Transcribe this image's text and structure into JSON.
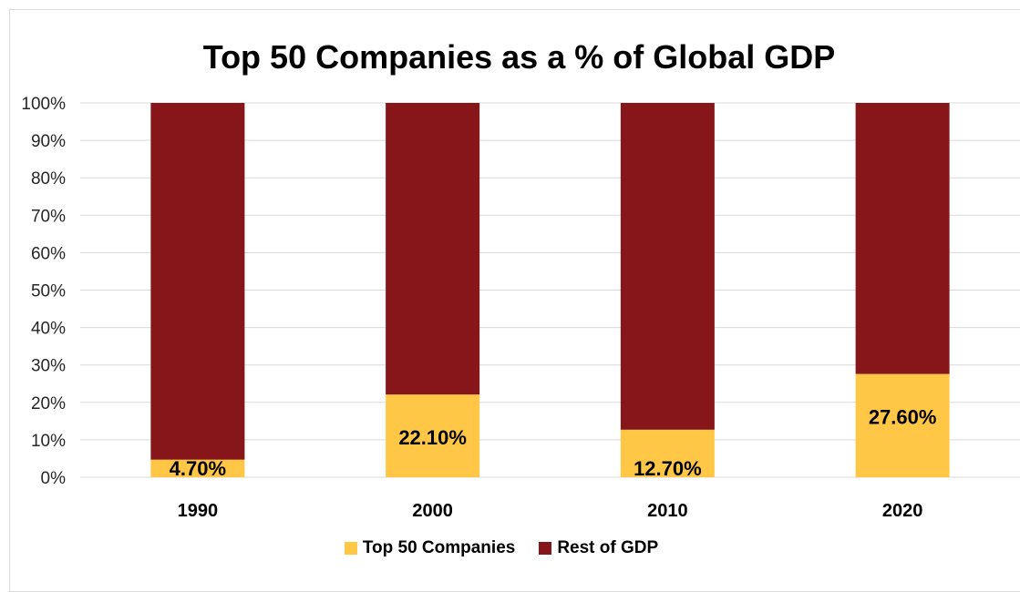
{
  "chart_data": {
    "type": "bar",
    "stacked": true,
    "percent_stacked": true,
    "title": "Top 50 Companies as a % of Global GDP",
    "xlabel": "",
    "ylabel": "",
    "ylim": [
      0,
      100
    ],
    "yticks": [
      "0%",
      "10%",
      "20%",
      "30%",
      "40%",
      "50%",
      "60%",
      "70%",
      "80%",
      "90%",
      "100%"
    ],
    "categories": [
      "1990",
      "2000",
      "2010",
      "2020"
    ],
    "series": [
      {
        "name": "Top 50 Companies",
        "color": "#FFC745",
        "values": [
          4.7,
          22.1,
          12.7,
          27.6
        ],
        "labels": [
          "4.70%",
          "22.10%",
          "12.70%",
          "27.60%"
        ]
      },
      {
        "name": "Rest of GDP",
        "color": "#86161A",
        "values": [
          95.3,
          77.9,
          87.3,
          72.4
        ]
      }
    ],
    "grid": true,
    "legend_position": "bottom"
  }
}
